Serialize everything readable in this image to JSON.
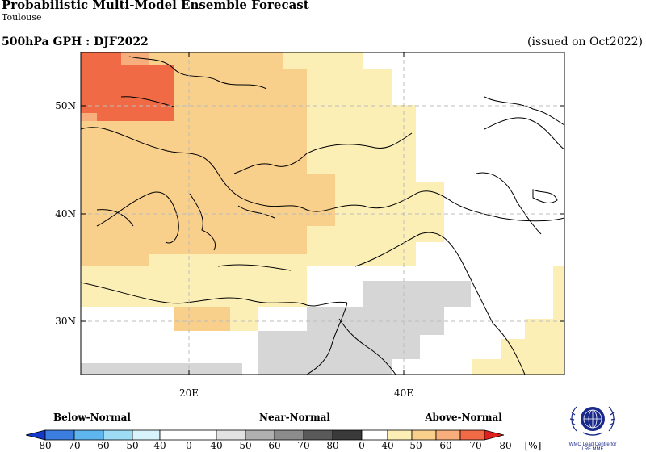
{
  "header": {
    "title": "Probabilistic Multi-Model Ensemble Forecast",
    "region": "Toulouse",
    "product": "500hPa GPH : DJF2022",
    "issued": "(issued on Oct2022)"
  },
  "map": {
    "lat_ticks": [
      "50N",
      "40N",
      "30N"
    ],
    "lon_ticks": [
      "20E",
      "40E"
    ],
    "colors": {
      "an_40_50": "#fcefb6",
      "an_50_60": "#f9d08b",
      "an_60_70": "#f8ae7c",
      "an_70_80": "#f06a45",
      "nn_40_50": "#d6d6d6",
      "land_none": "#ffffff"
    }
  },
  "legend": {
    "categories": [
      "Below-Normal",
      "Near-Normal",
      "Above-Normal"
    ],
    "tick_labels": [
      "80",
      "70",
      "60",
      "50",
      "40",
      "0",
      "40",
      "50",
      "60",
      "70",
      "80",
      "0",
      "40",
      "50",
      "60",
      "70",
      "80"
    ],
    "unit": "[%]",
    "below_colors": [
      "#1438c8",
      "#3b7ee0",
      "#5fb5ee",
      "#9edcf5"
    ],
    "near_colors": [
      "#e2e2e2",
      "#b0b0b0",
      "#8c8c8c",
      "#595959"
    ],
    "above_colors": [
      "#fcefb6",
      "#f9d08b",
      "#f8ae7c",
      "#f06a45",
      "#e0201c"
    ]
  },
  "logo": {
    "caption_line1": "WMO Lead Centre for",
    "caption_line2": "LRF MME"
  }
}
